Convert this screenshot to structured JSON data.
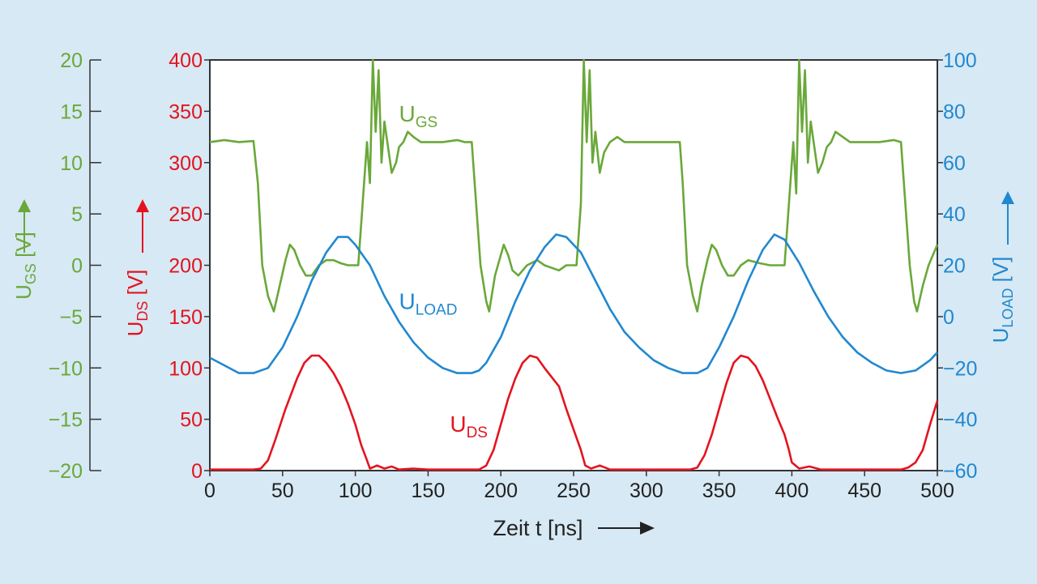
{
  "chart_data": {
    "type": "line",
    "xlabel": "Zeit t [ns]",
    "xlim": [
      0,
      500
    ],
    "x_ticks": [
      "0",
      "50",
      "100",
      "150",
      "200",
      "250",
      "300",
      "350",
      "400",
      "450",
      "500"
    ],
    "axes": {
      "ugs": {
        "label_main": "U",
        "label_sub": "GS",
        "label_unit": " [V]",
        "ylim": [
          -20,
          20
        ],
        "ticks": [
          "20",
          "15",
          "10",
          "5",
          "0",
          "−5",
          "−10",
          "−15",
          "−20"
        ],
        "color": "#6aa83a"
      },
      "uds": {
        "label_main": "U",
        "label_sub": "DS",
        "label_unit": " [V]",
        "ylim": [
          0,
          400
        ],
        "ticks": [
          "400",
          "350",
          "300",
          "250",
          "200",
          "150",
          "100",
          "50",
          "0"
        ],
        "color": "#e3141f"
      },
      "uload": {
        "label_main": "U",
        "label_sub": "LOAD",
        "label_unit": " [V]",
        "ylim": [
          -60,
          100
        ],
        "ticks": [
          "100",
          "80",
          "60",
          "40",
          "20",
          "0",
          "−20",
          "−40",
          "−60"
        ],
        "color": "#2188d0"
      }
    },
    "series": [
      {
        "name_main": "U",
        "name_sub": "GS",
        "axis": "ugs",
        "color": "#6aa83a",
        "points": [
          [
            0,
            12
          ],
          [
            10,
            12.2
          ],
          [
            20,
            12
          ],
          [
            30,
            12.1
          ],
          [
            33,
            8
          ],
          [
            36,
            0
          ],
          [
            40,
            -3
          ],
          [
            44,
            -4.5
          ],
          [
            48,
            -2
          ],
          [
            52,
            0.5
          ],
          [
            55,
            2
          ],
          [
            58,
            1.5
          ],
          [
            62,
            0
          ],
          [
            66,
            -1
          ],
          [
            70,
            -1
          ],
          [
            75,
            0
          ],
          [
            80,
            0.5
          ],
          [
            85,
            0.5
          ],
          [
            90,
            0.2
          ],
          [
            95,
            0
          ],
          [
            100,
            0
          ],
          [
            102,
            0
          ],
          [
            105,
            6
          ],
          [
            108,
            12
          ],
          [
            110,
            8
          ],
          [
            112,
            20
          ],
          [
            114,
            13
          ],
          [
            116,
            19
          ],
          [
            118,
            10
          ],
          [
            120,
            14
          ],
          [
            122,
            12
          ],
          [
            125,
            9
          ],
          [
            128,
            10
          ],
          [
            130,
            11.5
          ],
          [
            133,
            12
          ],
          [
            136,
            13
          ],
          [
            140,
            12.5
          ],
          [
            145,
            12
          ],
          [
            150,
            12
          ],
          [
            160,
            12
          ],
          [
            170,
            12.2
          ],
          [
            175,
            12
          ],
          [
            180,
            12
          ],
          [
            183,
            6
          ],
          [
            186,
            0
          ],
          [
            190,
            -3.5
          ],
          [
            192,
            -4.5
          ],
          [
            196,
            -1
          ],
          [
            200,
            1
          ],
          [
            202,
            2
          ],
          [
            205,
            1
          ],
          [
            208,
            -0.5
          ],
          [
            212,
            -1
          ],
          [
            218,
            0
          ],
          [
            225,
            0.5
          ],
          [
            230,
            0
          ],
          [
            240,
            -0.5
          ],
          [
            245,
            0
          ],
          [
            250,
            0
          ],
          [
            252,
            0
          ],
          [
            255,
            6
          ],
          [
            257,
            20
          ],
          [
            259,
            12
          ],
          [
            261,
            19
          ],
          [
            263,
            10
          ],
          [
            265,
            13
          ],
          [
            268,
            9
          ],
          [
            271,
            11
          ],
          [
            275,
            12
          ],
          [
            280,
            12.5
          ],
          [
            285,
            12
          ],
          [
            295,
            12
          ],
          [
            305,
            12
          ],
          [
            315,
            12
          ],
          [
            323,
            12
          ],
          [
            325,
            8
          ],
          [
            328,
            0
          ],
          [
            332,
            -3
          ],
          [
            335,
            -4.5
          ],
          [
            338,
            -2
          ],
          [
            342,
            0.5
          ],
          [
            345,
            2
          ],
          [
            348,
            1.5
          ],
          [
            352,
            0
          ],
          [
            356,
            -1
          ],
          [
            360,
            -1
          ],
          [
            365,
            0
          ],
          [
            370,
            0.5
          ],
          [
            378,
            0.2
          ],
          [
            385,
            0
          ],
          [
            392,
            0
          ],
          [
            395,
            0
          ],
          [
            398,
            6
          ],
          [
            401,
            12
          ],
          [
            403,
            7
          ],
          [
            405,
            20
          ],
          [
            407,
            13
          ],
          [
            409,
            19
          ],
          [
            411,
            10
          ],
          [
            413,
            14
          ],
          [
            415,
            12
          ],
          [
            418,
            9
          ],
          [
            421,
            10
          ],
          [
            424,
            11.5
          ],
          [
            427,
            12
          ],
          [
            430,
            13
          ],
          [
            435,
            12.5
          ],
          [
            440,
            12
          ],
          [
            450,
            12
          ],
          [
            460,
            12
          ],
          [
            470,
            12.2
          ],
          [
            475,
            12
          ],
          [
            478,
            6
          ],
          [
            481,
            0
          ],
          [
            484,
            -3.5
          ],
          [
            486,
            -4.5
          ],
          [
            490,
            -2
          ],
          [
            494,
            0
          ],
          [
            497,
            1
          ],
          [
            500,
            2
          ]
        ]
      },
      {
        "name_main": "U",
        "name_sub": "LOAD",
        "axis": "uload",
        "color": "#2188d0",
        "points": [
          [
            0,
            -16
          ],
          [
            10,
            -19
          ],
          [
            20,
            -22
          ],
          [
            30,
            -22
          ],
          [
            40,
            -20
          ],
          [
            50,
            -12
          ],
          [
            60,
            0
          ],
          [
            70,
            14
          ],
          [
            80,
            25
          ],
          [
            88,
            31
          ],
          [
            95,
            31
          ],
          [
            100,
            28
          ],
          [
            110,
            20
          ],
          [
            120,
            8
          ],
          [
            130,
            -2
          ],
          [
            140,
            -10
          ],
          [
            150,
            -16
          ],
          [
            160,
            -20
          ],
          [
            170,
            -22
          ],
          [
            180,
            -22
          ],
          [
            185,
            -21
          ],
          [
            190,
            -18
          ],
          [
            200,
            -8
          ],
          [
            210,
            6
          ],
          [
            220,
            18
          ],
          [
            230,
            27
          ],
          [
            238,
            32
          ],
          [
            245,
            31
          ],
          [
            255,
            25
          ],
          [
            265,
            14
          ],
          [
            275,
            3
          ],
          [
            285,
            -6
          ],
          [
            295,
            -12
          ],
          [
            305,
            -17
          ],
          [
            315,
            -20
          ],
          [
            325,
            -22
          ],
          [
            335,
            -22
          ],
          [
            342,
            -20
          ],
          [
            350,
            -12
          ],
          [
            360,
            0
          ],
          [
            370,
            14
          ],
          [
            380,
            26
          ],
          [
            388,
            32
          ],
          [
            395,
            30
          ],
          [
            405,
            21
          ],
          [
            415,
            10
          ],
          [
            425,
            0
          ],
          [
            435,
            -8
          ],
          [
            445,
            -14
          ],
          [
            455,
            -18
          ],
          [
            465,
            -21
          ],
          [
            475,
            -22
          ],
          [
            485,
            -21
          ],
          [
            495,
            -17
          ],
          [
            500,
            -14
          ]
        ]
      },
      {
        "name_main": "U",
        "name_sub": "DS",
        "axis": "uds",
        "color": "#e3141f",
        "points": [
          [
            0,
            1
          ],
          [
            10,
            1
          ],
          [
            20,
            1
          ],
          [
            30,
            1
          ],
          [
            35,
            2
          ],
          [
            40,
            10
          ],
          [
            45,
            30
          ],
          [
            52,
            60
          ],
          [
            60,
            90
          ],
          [
            65,
            105
          ],
          [
            70,
            112
          ],
          [
            75,
            112
          ],
          [
            80,
            105
          ],
          [
            85,
            95
          ],
          [
            90,
            82
          ],
          [
            95,
            65
          ],
          [
            100,
            45
          ],
          [
            104,
            25
          ],
          [
            108,
            10
          ],
          [
            110,
            2
          ],
          [
            115,
            5
          ],
          [
            120,
            2
          ],
          [
            125,
            4
          ],
          [
            130,
            1
          ],
          [
            140,
            2
          ],
          [
            150,
            1
          ],
          [
            160,
            1
          ],
          [
            170,
            1
          ],
          [
            180,
            1
          ],
          [
            185,
            1
          ],
          [
            190,
            5
          ],
          [
            195,
            20
          ],
          [
            200,
            45
          ],
          [
            205,
            70
          ],
          [
            210,
            90
          ],
          [
            215,
            105
          ],
          [
            220,
            112
          ],
          [
            225,
            110
          ],
          [
            230,
            100
          ],
          [
            240,
            82
          ],
          [
            245,
            60
          ],
          [
            250,
            40
          ],
          [
            255,
            20
          ],
          [
            258,
            5
          ],
          [
            262,
            2
          ],
          [
            268,
            5
          ],
          [
            275,
            1
          ],
          [
            290,
            1
          ],
          [
            310,
            1
          ],
          [
            330,
            1
          ],
          [
            335,
            3
          ],
          [
            340,
            15
          ],
          [
            345,
            35
          ],
          [
            350,
            60
          ],
          [
            355,
            85
          ],
          [
            360,
            105
          ],
          [
            365,
            112
          ],
          [
            370,
            110
          ],
          [
            375,
            102
          ],
          [
            380,
            88
          ],
          [
            385,
            70
          ],
          [
            390,
            52
          ],
          [
            395,
            35
          ],
          [
            398,
            20
          ],
          [
            400,
            8
          ],
          [
            405,
            2
          ],
          [
            412,
            4
          ],
          [
            420,
            1
          ],
          [
            440,
            1
          ],
          [
            460,
            1
          ],
          [
            470,
            1
          ],
          [
            475,
            1
          ],
          [
            480,
            3
          ],
          [
            485,
            8
          ],
          [
            490,
            20
          ],
          [
            495,
            45
          ],
          [
            500,
            68
          ]
        ]
      }
    ],
    "annotations": [
      {
        "main": "U",
        "sub": "GS",
        "color": "#6aa83a",
        "x": 130,
        "y_axis": "ugs",
        "y": 14
      },
      {
        "main": "U",
        "sub": "LOAD",
        "color": "#2188d0",
        "x": 130,
        "y_axis": "uload",
        "y": 3
      },
      {
        "main": "U",
        "sub": "DS",
        "color": "#e3141f",
        "x": 165,
        "y_axis": "uds",
        "y": 38
      }
    ]
  }
}
